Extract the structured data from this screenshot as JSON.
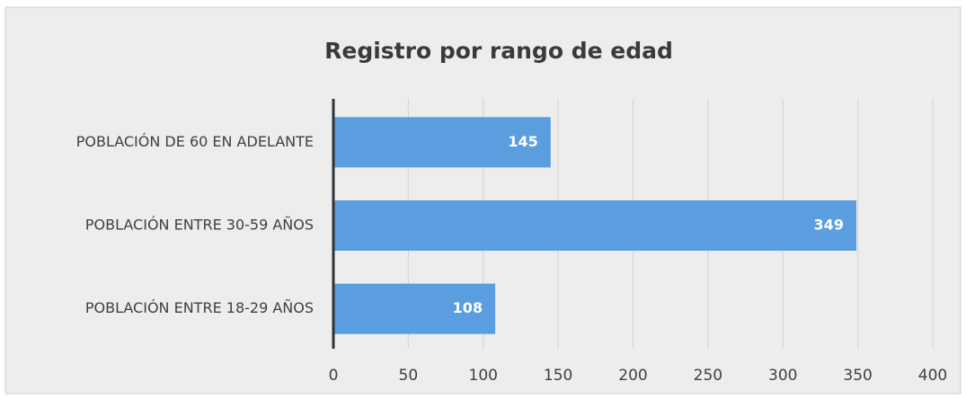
{
  "chart_data": {
    "type": "bar",
    "orientation": "horizontal",
    "title": "Registro por rango de edad",
    "categories": [
      "POBLACIÓN DE 60 EN ADELANTE",
      "POBLACIÓN ENTRE 30-59 AÑOS",
      "POBLACIÓN ENTRE 18-29 AÑOS"
    ],
    "values": [
      145,
      349,
      108
    ],
    "color": "#5a9ee0",
    "xlim": [
      0,
      400
    ],
    "xticks": [
      0,
      50,
      100,
      150,
      200,
      250,
      300,
      350,
      400
    ],
    "grid": true
  }
}
